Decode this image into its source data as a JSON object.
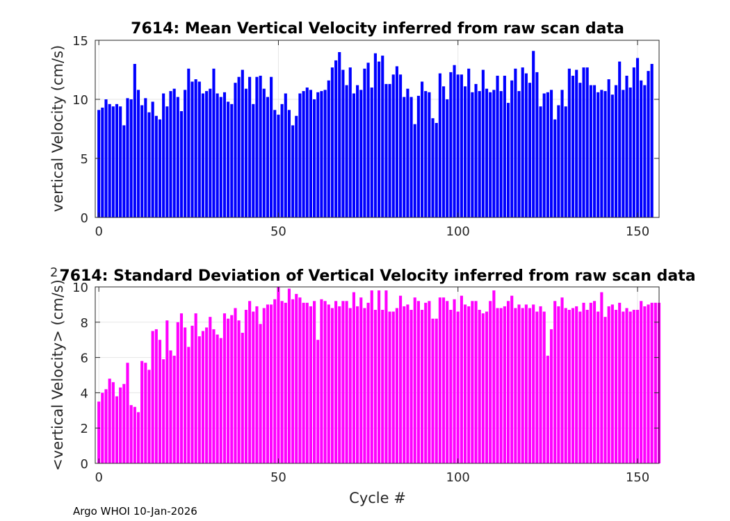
{
  "colors": {
    "top_bars": "#0000ff",
    "bottom_bars": "#ff00ff",
    "axis": "#262626",
    "grid": "#e6e6e6"
  },
  "footer": "Argo WHOI 10-Jan-2026",
  "chart_data": [
    {
      "type": "bar",
      "title": "7614: Mean Vertical Velocity inferred from raw scan data",
      "xlabel": "",
      "ylabel": "vertical Velocity (cm/s)",
      "xlim": [
        -1,
        156
      ],
      "ylim": [
        0,
        15
      ],
      "xticks": [
        0,
        50,
        100,
        150
      ],
      "yticks": [
        0,
        5,
        10,
        15
      ],
      "grid": true,
      "x_start": 0,
      "values": [
        9.1,
        9.3,
        10.0,
        9.6,
        9.4,
        9.6,
        9.4,
        7.8,
        10.1,
        10.0,
        13.0,
        10.8,
        9.5,
        10.1,
        8.9,
        9.8,
        8.6,
        8.3,
        10.5,
        9.4,
        10.7,
        10.9,
        10.2,
        9.0,
        10.8,
        12.6,
        11.5,
        11.7,
        11.5,
        10.5,
        10.7,
        10.9,
        12.6,
        10.5,
        10.2,
        10.6,
        9.8,
        9.6,
        11.4,
        11.9,
        12.5,
        10.9,
        11.9,
        9.6,
        11.9,
        12.0,
        10.9,
        10.2,
        11.9,
        9.1,
        8.7,
        9.6,
        10.5,
        9.1,
        7.8,
        8.6,
        10.5,
        10.7,
        11.0,
        10.8,
        10.0,
        10.6,
        10.7,
        10.8,
        11.6,
        12.7,
        13.3,
        14.0,
        12.5,
        11.2,
        12.7,
        10.5,
        11.2,
        10.8,
        12.6,
        13.1,
        11.0,
        13.9,
        13.2,
        13.7,
        11.3,
        11.3,
        12.1,
        12.8,
        12.1,
        10.2,
        10.9,
        10.2,
        7.9,
        10.3,
        11.5,
        10.7,
        10.6,
        8.4,
        8.0,
        12.2,
        11.1,
        10.0,
        12.3,
        12.9,
        12.1,
        12.1,
        11.1,
        12.6,
        10.6,
        11.3,
        10.7,
        12.5,
        10.9,
        10.6,
        10.8,
        12.0,
        10.7,
        12.0,
        9.7,
        11.6,
        12.6,
        10.7,
        12.7,
        12.2,
        11.4,
        14.1,
        12.3,
        9.4,
        10.5,
        10.6,
        10.8,
        8.3,
        9.5,
        10.8,
        9.4,
        12.6,
        12.0,
        12.5,
        11.4,
        12.7,
        12.7,
        11.2,
        11.2,
        10.6,
        10.8,
        10.7,
        11.7,
        10.4,
        11.2,
        13.2,
        10.8,
        12.0,
        11.0,
        12.7,
        13.5,
        11.6,
        11.2,
        12.4,
        13.0
      ]
    },
    {
      "type": "bar",
      "title": "7614: Standard Deviation of Vertical Velocity inferred from raw scan data",
      "xlabel": "Cycle #",
      "ylabel": "<vertical Velocity> (cm/s)",
      "ylabel_superscript": "2",
      "xlim": [
        -1,
        156
      ],
      "ylim": [
        0,
        10
      ],
      "xticks": [
        0,
        50,
        100,
        150
      ],
      "yticks": [
        0,
        2,
        4,
        6,
        8,
        10
      ],
      "grid": true,
      "x_start": 0,
      "values": [
        3.5,
        4.0,
        4.2,
        4.8,
        4.6,
        3.8,
        4.3,
        4.5,
        5.7,
        3.3,
        3.2,
        2.9,
        5.8,
        5.7,
        5.3,
        7.5,
        7.6,
        7.0,
        5.9,
        8.1,
        6.4,
        6.1,
        8.0,
        8.5,
        7.7,
        6.6,
        7.8,
        8.5,
        7.2,
        7.5,
        7.7,
        8.3,
        7.6,
        7.3,
        7.1,
        8.5,
        8.2,
        8.4,
        8.8,
        8.1,
        7.4,
        8.7,
        9.2,
        8.6,
        8.9,
        7.9,
        8.8,
        9.0,
        9.0,
        9.3,
        10.0,
        9.2,
        9.1,
        9.9,
        9.3,
        9.6,
        9.4,
        9.1,
        9.1,
        8.9,
        9.2,
        7.0,
        9.3,
        9.2,
        9.0,
        8.8,
        9.2,
        8.9,
        9.2,
        9.2,
        8.8,
        9.7,
        8.9,
        9.4,
        8.8,
        9.1,
        9.8,
        8.7,
        9.8,
        8.7,
        9.8,
        8.6,
        8.6,
        8.8,
        9.5,
        8.9,
        9.0,
        8.7,
        9.4,
        9.2,
        8.7,
        9.1,
        9.2,
        8.2,
        8.2,
        9.4,
        9.4,
        9.2,
        8.7,
        9.3,
        8.6,
        9.5,
        9.0,
        8.9,
        9.2,
        9.2,
        8.7,
        8.5,
        8.6,
        9.2,
        9.8,
        8.8,
        8.8,
        8.9,
        9.2,
        9.5,
        8.8,
        9.0,
        8.8,
        9.0,
        8.8,
        9.0,
        8.6,
        8.9,
        8.6,
        6.1,
        7.6,
        9.2,
        8.9,
        9.4,
        8.8,
        8.7,
        8.8,
        8.9,
        8.6,
        9.1,
        8.7,
        9.1,
        9.2,
        8.6,
        9.7,
        8.3,
        8.9,
        9.0,
        8.7,
        9.1,
        8.6,
        8.8,
        8.6,
        8.7,
        8.7,
        9.2,
        8.9,
        9.0,
        9.1,
        9.1,
        9.1
      ]
    }
  ]
}
